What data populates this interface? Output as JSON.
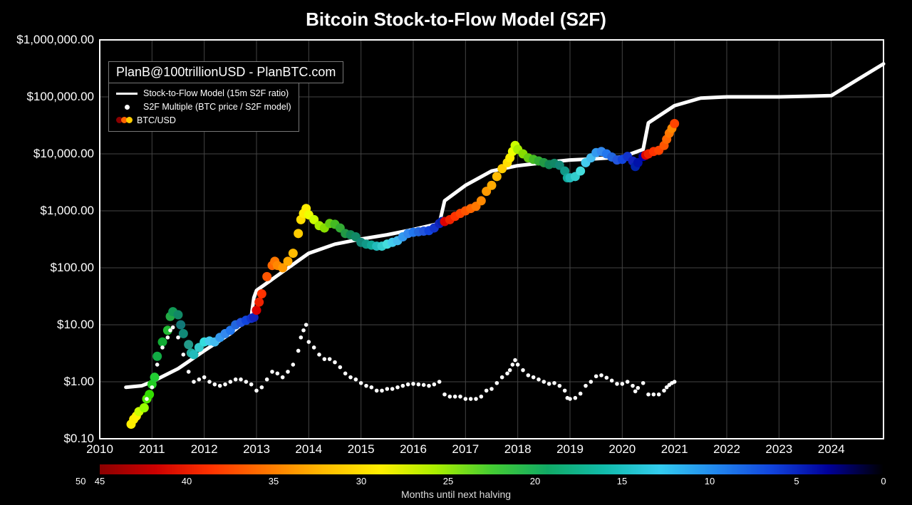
{
  "title": "Bitcoin Stock-to-Flow Model (S2F)",
  "attribution": "PlanB@100trillionUSD - PlanBTC.com",
  "legend": {
    "model": "Stock-to-Flow Model (15m S2F ratio)",
    "multiple": "S2F Multiple (BTC price / S2F model)",
    "price": "BTC/USD",
    "dot_colors": [
      "#8b0000",
      "#ff6600",
      "#ffcc00"
    ]
  },
  "axes": {
    "x": {
      "min": 2010,
      "max": 2025,
      "ticks": [
        2010,
        2011,
        2012,
        2013,
        2014,
        2015,
        2016,
        2017,
        2018,
        2019,
        2020,
        2021,
        2022,
        2023,
        2024
      ]
    },
    "y": {
      "scale": "log",
      "min": 0.1,
      "max": 1000000,
      "ticks": [
        {
          "v": 0.1,
          "label": "$0.10"
        },
        {
          "v": 1,
          "label": "$1.00"
        },
        {
          "v": 10,
          "label": "$10.00"
        },
        {
          "v": 100,
          "label": "$100.00"
        },
        {
          "v": 1000,
          "label": "$1,000.00"
        },
        {
          "v": 10000,
          "label": "$10,000.00"
        },
        {
          "v": 100000,
          "label": "$100,000.00"
        },
        {
          "v": 1000000,
          "label": "$1,000,000.00"
        }
      ]
    },
    "grid_color": "#444444",
    "border_color": "#ffffff"
  },
  "s2f_model_line": {
    "color": "#ffffff",
    "width": 5,
    "points": [
      [
        2010.5,
        0.8
      ],
      [
        2010.8,
        0.85
      ],
      [
        2011,
        1.0
      ],
      [
        2011.5,
        1.7
      ],
      [
        2012,
        3.5
      ],
      [
        2012.5,
        7
      ],
      [
        2012.9,
        14
      ],
      [
        2012.95,
        30
      ],
      [
        2013,
        40
      ],
      [
        2013.5,
        85
      ],
      [
        2014,
        180
      ],
      [
        2014.5,
        260
      ],
      [
        2015,
        320
      ],
      [
        2015.5,
        380
      ],
      [
        2016,
        470
      ],
      [
        2016.5,
        600
      ],
      [
        2016.6,
        1500
      ],
      [
        2017,
        2800
      ],
      [
        2017.5,
        5000
      ],
      [
        2018,
        6200
      ],
      [
        2018.5,
        7000
      ],
      [
        2019,
        7800
      ],
      [
        2019.5,
        8200
      ],
      [
        2020,
        8800
      ],
      [
        2020.4,
        12000
      ],
      [
        2020.5,
        35000
      ],
      [
        2021,
        70000
      ],
      [
        2021.5,
        95000
      ],
      [
        2022,
        100000
      ],
      [
        2023,
        100000
      ],
      [
        2024,
        105000
      ],
      [
        2024.5,
        200000
      ],
      [
        2025,
        380000
      ]
    ]
  },
  "btc_usd_points": {
    "radius": 6.5,
    "points": [
      [
        2010.6,
        0.18,
        "#ffee00"
      ],
      [
        2010.65,
        0.22,
        "#ffee00"
      ],
      [
        2010.7,
        0.25,
        "#fff200"
      ],
      [
        2010.75,
        0.3,
        "#ccff00"
      ],
      [
        2010.85,
        0.35,
        "#99ff00"
      ],
      [
        2010.9,
        0.5,
        "#55ee00"
      ],
      [
        2010.95,
        0.6,
        "#33dd00"
      ],
      [
        2011.0,
        0.9,
        "#22cc22"
      ],
      [
        2011.05,
        1.2,
        "#22cc33"
      ],
      [
        2011.1,
        2.8,
        "#11aa44"
      ],
      [
        2011.2,
        5,
        "#11aa33"
      ],
      [
        2011.3,
        8,
        "#22bb33"
      ],
      [
        2011.35,
        14,
        "#22aa44"
      ],
      [
        2011.4,
        17,
        "#119955"
      ],
      [
        2011.5,
        15,
        "#118866"
      ],
      [
        2011.55,
        10,
        "#117777"
      ],
      [
        2011.6,
        7,
        "#118877"
      ],
      [
        2011.7,
        4.5,
        "#229988"
      ],
      [
        2011.75,
        3.2,
        "#22aa99"
      ],
      [
        2011.8,
        3,
        "#22bbbb"
      ],
      [
        2011.9,
        4,
        "#33cccc"
      ],
      [
        2012.0,
        5,
        "#33dddd"
      ],
      [
        2012.1,
        5.2,
        "#44ccee"
      ],
      [
        2012.2,
        5,
        "#44bbee"
      ],
      [
        2012.3,
        6,
        "#3399ee"
      ],
      [
        2012.4,
        7,
        "#3388ee"
      ],
      [
        2012.5,
        8,
        "#2277ee"
      ],
      [
        2012.6,
        10,
        "#2266dd"
      ],
      [
        2012.7,
        11,
        "#2255dd"
      ],
      [
        2012.8,
        12,
        "#1144dd"
      ],
      [
        2012.9,
        13,
        "#1133cc"
      ],
      [
        2012.95,
        13.5,
        "#1122bb"
      ],
      [
        2013.0,
        18,
        "#dd0000"
      ],
      [
        2013.05,
        25,
        "#ee2200"
      ],
      [
        2013.1,
        35,
        "#ff3300"
      ],
      [
        2013.2,
        70,
        "#ff5500"
      ],
      [
        2013.3,
        110,
        "#ff6600"
      ],
      [
        2013.35,
        130,
        "#ff7700"
      ],
      [
        2013.4,
        110,
        "#ff8800"
      ],
      [
        2013.5,
        100,
        "#ff9900"
      ],
      [
        2013.6,
        130,
        "#ffaa00"
      ],
      [
        2013.7,
        180,
        "#ffbb00"
      ],
      [
        2013.8,
        400,
        "#ffcc00"
      ],
      [
        2013.85,
        700,
        "#ffdd00"
      ],
      [
        2013.9,
        900,
        "#ffee00"
      ],
      [
        2013.95,
        1100,
        "#ffee00"
      ],
      [
        2014.0,
        850,
        "#eeff00"
      ],
      [
        2014.1,
        700,
        "#ccff00"
      ],
      [
        2014.2,
        550,
        "#aaee00"
      ],
      [
        2014.3,
        500,
        "#88dd00"
      ],
      [
        2014.4,
        600,
        "#66cc11"
      ],
      [
        2014.5,
        580,
        "#44bb22"
      ],
      [
        2014.6,
        500,
        "#33aa33"
      ],
      [
        2014.7,
        400,
        "#229944"
      ],
      [
        2014.8,
        380,
        "#118855"
      ],
      [
        2014.9,
        350,
        "#118866"
      ],
      [
        2015.0,
        280,
        "#118877"
      ],
      [
        2015.1,
        260,
        "#119988"
      ],
      [
        2015.2,
        250,
        "#11aa99"
      ],
      [
        2015.3,
        240,
        "#22bbbb"
      ],
      [
        2015.4,
        240,
        "#33cccc"
      ],
      [
        2015.5,
        260,
        "#44dddd"
      ],
      [
        2015.6,
        280,
        "#44ccee"
      ],
      [
        2015.7,
        300,
        "#44bbee"
      ],
      [
        2015.8,
        350,
        "#3399ee"
      ],
      [
        2015.9,
        400,
        "#3388ee"
      ],
      [
        2016.0,
        420,
        "#2277ee"
      ],
      [
        2016.1,
        430,
        "#2266dd"
      ],
      [
        2016.2,
        440,
        "#2255dd"
      ],
      [
        2016.3,
        450,
        "#1144dd"
      ],
      [
        2016.4,
        500,
        "#1133cc"
      ],
      [
        2016.5,
        600,
        "#1122bb"
      ],
      [
        2016.55,
        650,
        "#0022aa"
      ],
      [
        2016.6,
        650,
        "#dd0000"
      ],
      [
        2016.7,
        700,
        "#ee2200"
      ],
      [
        2016.8,
        800,
        "#ff3300"
      ],
      [
        2016.9,
        900,
        "#ff4400"
      ],
      [
        2017.0,
        1000,
        "#ff5500"
      ],
      [
        2017.1,
        1100,
        "#ff6600"
      ],
      [
        2017.2,
        1200,
        "#ff7700"
      ],
      [
        2017.3,
        1500,
        "#ff8800"
      ],
      [
        2017.4,
        2200,
        "#ff9900"
      ],
      [
        2017.5,
        2800,
        "#ffaa00"
      ],
      [
        2017.6,
        4000,
        "#ffbb00"
      ],
      [
        2017.7,
        5500,
        "#ffcc00"
      ],
      [
        2017.8,
        7000,
        "#ffdd00"
      ],
      [
        2017.85,
        8500,
        "#ffee00"
      ],
      [
        2017.9,
        11000,
        "#eeff00"
      ],
      [
        2017.95,
        14000,
        "#ccff00"
      ],
      [
        2018.0,
        12000,
        "#aaee00"
      ],
      [
        2018.1,
        10000,
        "#88dd00"
      ],
      [
        2018.2,
        8500,
        "#66cc11"
      ],
      [
        2018.3,
        8000,
        "#44bb22"
      ],
      [
        2018.4,
        7500,
        "#33aa33"
      ],
      [
        2018.5,
        7000,
        "#229944"
      ],
      [
        2018.6,
        6500,
        "#118855"
      ],
      [
        2018.7,
        6800,
        "#118866"
      ],
      [
        2018.8,
        6300,
        "#118877"
      ],
      [
        2018.9,
        5000,
        "#119988"
      ],
      [
        2018.95,
        3800,
        "#11aa99"
      ],
      [
        2019.0,
        3800,
        "#22bbbb"
      ],
      [
        2019.1,
        4000,
        "#33cccc"
      ],
      [
        2019.2,
        5000,
        "#44dddd"
      ],
      [
        2019.3,
        7000,
        "#44ccee"
      ],
      [
        2019.4,
        8500,
        "#44bbee"
      ],
      [
        2019.5,
        10500,
        "#3399ee"
      ],
      [
        2019.6,
        11000,
        "#3388ee"
      ],
      [
        2019.7,
        10000,
        "#2277ee"
      ],
      [
        2019.8,
        8800,
        "#2266dd"
      ],
      [
        2019.9,
        7800,
        "#2255dd"
      ],
      [
        2020.0,
        8000,
        "#1144dd"
      ],
      [
        2020.1,
        9000,
        "#1133cc"
      ],
      [
        2020.2,
        7500,
        "#1122bb"
      ],
      [
        2020.25,
        6000,
        "#0022aa"
      ],
      [
        2020.3,
        7000,
        "#0011aa"
      ],
      [
        2020.4,
        9000,
        "#0000aa"
      ],
      [
        2020.45,
        9500,
        "#dd0000"
      ],
      [
        2020.5,
        10000,
        "#ee2200"
      ],
      [
        2020.6,
        11000,
        "#ff3300"
      ],
      [
        2020.7,
        11500,
        "#ff4400"
      ],
      [
        2020.8,
        14000,
        "#ff5500"
      ],
      [
        2020.85,
        18000,
        "#ff6600"
      ],
      [
        2020.9,
        23000,
        "#ff7700"
      ],
      [
        2020.95,
        28000,
        "#ff8800"
      ],
      [
        2021.0,
        34000,
        "#ff4400"
      ]
    ]
  },
  "s2f_multiple_points": {
    "color": "#ffffff",
    "radius": 2.8,
    "points": [
      [
        2010.9,
        0.5
      ],
      [
        2011.0,
        0.8
      ],
      [
        2011.1,
        2
      ],
      [
        2011.2,
        4
      ],
      [
        2011.3,
        6
      ],
      [
        2011.35,
        8
      ],
      [
        2011.4,
        9
      ],
      [
        2011.5,
        6
      ],
      [
        2011.6,
        3
      ],
      [
        2011.7,
        1.5
      ],
      [
        2011.8,
        1
      ],
      [
        2011.9,
        1.1
      ],
      [
        2012.0,
        1.2
      ],
      [
        2012.1,
        1
      ],
      [
        2012.2,
        0.9
      ],
      [
        2012.3,
        0.85
      ],
      [
        2012.4,
        0.9
      ],
      [
        2012.5,
        1
      ],
      [
        2012.6,
        1.1
      ],
      [
        2012.7,
        1.1
      ],
      [
        2012.8,
        1
      ],
      [
        2012.9,
        0.9
      ],
      [
        2013.0,
        0.7
      ],
      [
        2013.1,
        0.8
      ],
      [
        2013.2,
        1.1
      ],
      [
        2013.3,
        1.5
      ],
      [
        2013.4,
        1.4
      ],
      [
        2013.5,
        1.2
      ],
      [
        2013.6,
        1.5
      ],
      [
        2013.7,
        2
      ],
      [
        2013.8,
        3.5
      ],
      [
        2013.85,
        6
      ],
      [
        2013.9,
        8
      ],
      [
        2013.95,
        10
      ],
      [
        2014.0,
        5
      ],
      [
        2014.1,
        4
      ],
      [
        2014.2,
        3
      ],
      [
        2014.3,
        2.5
      ],
      [
        2014.4,
        2.5
      ],
      [
        2014.5,
        2.2
      ],
      [
        2014.6,
        1.8
      ],
      [
        2014.7,
        1.4
      ],
      [
        2014.8,
        1.2
      ],
      [
        2014.9,
        1.1
      ],
      [
        2015.0,
        0.95
      ],
      [
        2015.1,
        0.85
      ],
      [
        2015.2,
        0.8
      ],
      [
        2015.3,
        0.7
      ],
      [
        2015.4,
        0.7
      ],
      [
        2015.5,
        0.75
      ],
      [
        2015.6,
        0.75
      ],
      [
        2015.7,
        0.8
      ],
      [
        2015.8,
        0.85
      ],
      [
        2015.9,
        0.9
      ],
      [
        2016.0,
        0.92
      ],
      [
        2016.1,
        0.9
      ],
      [
        2016.2,
        0.88
      ],
      [
        2016.3,
        0.85
      ],
      [
        2016.4,
        0.9
      ],
      [
        2016.5,
        1
      ],
      [
        2016.6,
        0.6
      ],
      [
        2016.7,
        0.55
      ],
      [
        2016.8,
        0.55
      ],
      [
        2016.9,
        0.55
      ],
      [
        2017.0,
        0.5
      ],
      [
        2017.1,
        0.5
      ],
      [
        2017.2,
        0.5
      ],
      [
        2017.3,
        0.55
      ],
      [
        2017.4,
        0.7
      ],
      [
        2017.5,
        0.75
      ],
      [
        2017.6,
        0.95
      ],
      [
        2017.7,
        1.2
      ],
      [
        2017.8,
        1.4
      ],
      [
        2017.85,
        1.6
      ],
      [
        2017.9,
        2
      ],
      [
        2017.95,
        2.4
      ],
      [
        2018.0,
        2
      ],
      [
        2018.1,
        1.6
      ],
      [
        2018.2,
        1.3
      ],
      [
        2018.3,
        1.2
      ],
      [
        2018.4,
        1.1
      ],
      [
        2018.5,
        1
      ],
      [
        2018.6,
        0.92
      ],
      [
        2018.7,
        0.95
      ],
      [
        2018.8,
        0.85
      ],
      [
        2018.9,
        0.7
      ],
      [
        2018.95,
        0.52
      ],
      [
        2019.0,
        0.5
      ],
      [
        2019.1,
        0.52
      ],
      [
        2019.2,
        0.62
      ],
      [
        2019.3,
        0.85
      ],
      [
        2019.4,
        1
      ],
      [
        2019.5,
        1.25
      ],
      [
        2019.6,
        1.3
      ],
      [
        2019.7,
        1.18
      ],
      [
        2019.8,
        1.05
      ],
      [
        2019.9,
        0.92
      ],
      [
        2020.0,
        0.92
      ],
      [
        2020.1,
        1
      ],
      [
        2020.2,
        0.85
      ],
      [
        2020.25,
        0.68
      ],
      [
        2020.3,
        0.78
      ],
      [
        2020.4,
        0.95
      ],
      [
        2020.5,
        0.6
      ],
      [
        2020.6,
        0.6
      ],
      [
        2020.7,
        0.6
      ],
      [
        2020.8,
        0.7
      ],
      [
        2020.85,
        0.8
      ],
      [
        2020.9,
        0.88
      ],
      [
        2020.95,
        0.95
      ],
      [
        2021.0,
        1
      ]
    ]
  },
  "gradient_bar": {
    "colors": [
      "#8b0000",
      "#cc0000",
      "#ff3300",
      "#ff7700",
      "#ffbb00",
      "#ffee00",
      "#aaee00",
      "#44cc33",
      "#11aa66",
      "#11bbaa",
      "#33ccee",
      "#2288ee",
      "#1144dd",
      "#000099",
      "#000000"
    ],
    "ticks": [
      {
        "v": 50,
        "pos": -34
      },
      {
        "v": 45,
        "pos": 0
      },
      {
        "v": 40,
        "pos": 122
      },
      {
        "v": 35,
        "pos": 244
      },
      {
        "v": 30,
        "pos": 367
      },
      {
        "v": 25,
        "pos": 489
      },
      {
        "v": 20,
        "pos": 611
      },
      {
        "v": 15,
        "pos": 733
      },
      {
        "v": 10,
        "pos": 856
      },
      {
        "v": 5,
        "pos": 978
      },
      {
        "v": 0,
        "pos": 1100
      }
    ],
    "title": "Months until next halving"
  }
}
